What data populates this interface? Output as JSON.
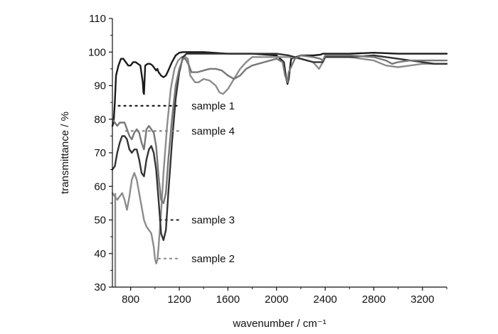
{
  "chart_data": {
    "type": "line",
    "title": "",
    "xlabel": "wavenumber / cm⁻¹",
    "ylabel": "transmittance / %",
    "xlim": [
      650,
      3400
    ],
    "ylim": [
      30,
      110
    ],
    "x_ticks": [
      800,
      1200,
      1600,
      2000,
      2400,
      2800,
      3200
    ],
    "y_ticks": [
      30,
      40,
      50,
      60,
      70,
      80,
      90,
      100,
      110
    ],
    "grid": false,
    "legend": "none",
    "annotations": [
      {
        "id": "label_s1",
        "text": "sample 1",
        "series": "s1",
        "x": 1300,
        "y": 84,
        "leader_from_x": 700,
        "leader_color": "#1a1a1a"
      },
      {
        "id": "label_s4",
        "text": "sample 4",
        "series": "s4",
        "x": 1300,
        "y": 76.5,
        "leader_from_x": 760,
        "leader_color": "#808080"
      },
      {
        "id": "label_s3",
        "text": "sample 3",
        "series": "s3",
        "x": 1300,
        "y": 50,
        "leader_from_x": 1040,
        "leader_color": "#303030"
      },
      {
        "id": "label_s2",
        "text": "sample 2",
        "series": "s2",
        "x": 1300,
        "y": 38.5,
        "leader_from_x": 1030,
        "leader_color": "#909090"
      }
    ],
    "series": [
      {
        "id": "s1",
        "color": "#1a1a1a",
        "x": [
          650,
          660,
          670,
          680,
          700,
          720,
          740,
          760,
          780,
          800,
          820,
          840,
          860,
          880,
          900,
          905,
          910,
          920,
          940,
          960,
          980,
          1000,
          1010,
          1020,
          1030,
          1050,
          1070,
          1090,
          1110,
          1140,
          1170,
          1200,
          1230,
          1260,
          1280,
          1400,
          1600,
          1800,
          2000,
          2060,
          2080,
          2090,
          2100,
          2120,
          2200,
          2300,
          2360,
          2380,
          2400,
          2600,
          2800,
          3000,
          3200,
          3400
        ],
        "y": [
          78,
          79,
          85,
          93,
          96,
          98,
          98,
          97,
          96,
          96,
          97,
          97,
          96.5,
          96,
          91,
          88,
          87.5,
          96,
          96.5,
          96.5,
          96,
          95,
          94.5,
          95,
          94,
          93,
          92.5,
          93,
          94.5,
          97,
          99,
          99.8,
          100,
          100,
          100,
          100,
          99.5,
          99.5,
          99,
          97,
          92,
          90.5,
          92,
          98,
          99,
          99,
          99.2,
          99.5,
          99.5,
          99.5,
          99.8,
          99.5,
          99.5,
          99.5
        ]
      },
      {
        "id": "s2",
        "color": "#8c8c8c",
        "x": [
          650,
          670,
          690,
          710,
          730,
          750,
          770,
          790,
          810,
          830,
          850,
          870,
          890,
          910,
          930,
          950,
          970,
          990,
          1000,
          1010,
          1020,
          1030,
          1050,
          1070,
          1100,
          1130,
          1160,
          1190,
          1220,
          1250,
          1270,
          1290,
          1310,
          1330,
          1360,
          1400,
          1450,
          1500,
          1530,
          1560,
          1600,
          1650,
          1700,
          1750,
          1800,
          1900,
          2000,
          2100,
          2200,
          2300,
          2350,
          2380,
          2400,
          2600,
          2800,
          2900,
          3000,
          3100,
          3200,
          3300,
          3400
        ],
        "y": [
          58,
          57,
          56,
          57,
          58,
          56,
          53,
          57,
          62,
          64,
          62,
          58,
          54,
          50,
          48,
          47,
          46,
          42,
          38.5,
          37,
          38,
          42,
          52,
          64,
          78,
          89,
          95,
          97.5,
          98.5,
          98.5,
          98,
          93,
          92,
          91,
          91,
          92,
          91.5,
          90,
          88,
          87.5,
          89,
          92,
          95,
          97,
          98.5,
          98.5,
          98.5,
          98.5,
          98,
          97,
          95,
          97,
          98.5,
          98.5,
          97.5,
          96,
          95.5,
          96,
          96.5,
          96.5,
          96.5
        ]
      },
      {
        "id": "s3",
        "color": "#333333",
        "x": [
          650,
          670,
          690,
          710,
          730,
          750,
          770,
          790,
          810,
          830,
          850,
          870,
          890,
          910,
          930,
          950,
          970,
          990,
          1010,
          1030,
          1050,
          1070,
          1090,
          1110,
          1140,
          1170,
          1200,
          1230,
          1260,
          1280,
          1300,
          1400,
          1600,
          1800,
          2000,
          2100,
          2200,
          2300,
          2380,
          2400,
          2600,
          2800,
          2900,
          3000,
          3100,
          3200,
          3300,
          3400
        ],
        "y": [
          65,
          66,
          70,
          73,
          75,
          75,
          74,
          71,
          70,
          71,
          71,
          68,
          64,
          63,
          68,
          71,
          72,
          70,
          65,
          56,
          46,
          44,
          47,
          58,
          73,
          86,
          94,
          98.5,
          99.5,
          99.5,
          99.5,
          99.5,
          99.5,
          99.5,
          99.5,
          99,
          98,
          97,
          97,
          98.5,
          98.5,
          99,
          98.5,
          98,
          97.5,
          97,
          96.5,
          96.5
        ]
      },
      {
        "id": "s4",
        "color": "#777777",
        "x": [
          650,
          670,
          690,
          710,
          730,
          750,
          770,
          790,
          810,
          830,
          850,
          870,
          890,
          910,
          930,
          950,
          970,
          990,
          1010,
          1030,
          1050,
          1070,
          1090,
          1110,
          1140,
          1170,
          1200,
          1230,
          1250,
          1280,
          1300,
          1350,
          1400,
          1450,
          1500,
          1550,
          1600,
          1650,
          1700,
          1750,
          1800,
          1900,
          2000,
          2050,
          2070,
          2090,
          2100,
          2150,
          2200,
          2300,
          2360,
          2380,
          2400,
          2600,
          2800,
          2900,
          2950,
          3000,
          3100,
          3200,
          3300,
          3400
        ],
        "y": [
          80,
          79,
          78,
          79,
          79,
          79,
          77,
          75,
          74,
          76,
          77,
          76,
          73,
          71,
          77,
          78,
          77,
          76,
          72,
          63,
          56,
          55,
          58,
          68,
          80,
          90,
          95,
          98,
          98,
          96,
          94,
          94,
          94.5,
          95,
          95,
          94.5,
          93,
          92,
          93,
          95,
          96,
          97,
          98,
          97,
          93,
          91,
          94,
          98,
          99,
          98.5,
          98,
          97.5,
          99,
          99,
          98.5,
          97.5,
          96.5,
          97,
          97.5,
          97.5,
          97.5,
          97.5
        ]
      }
    ]
  }
}
